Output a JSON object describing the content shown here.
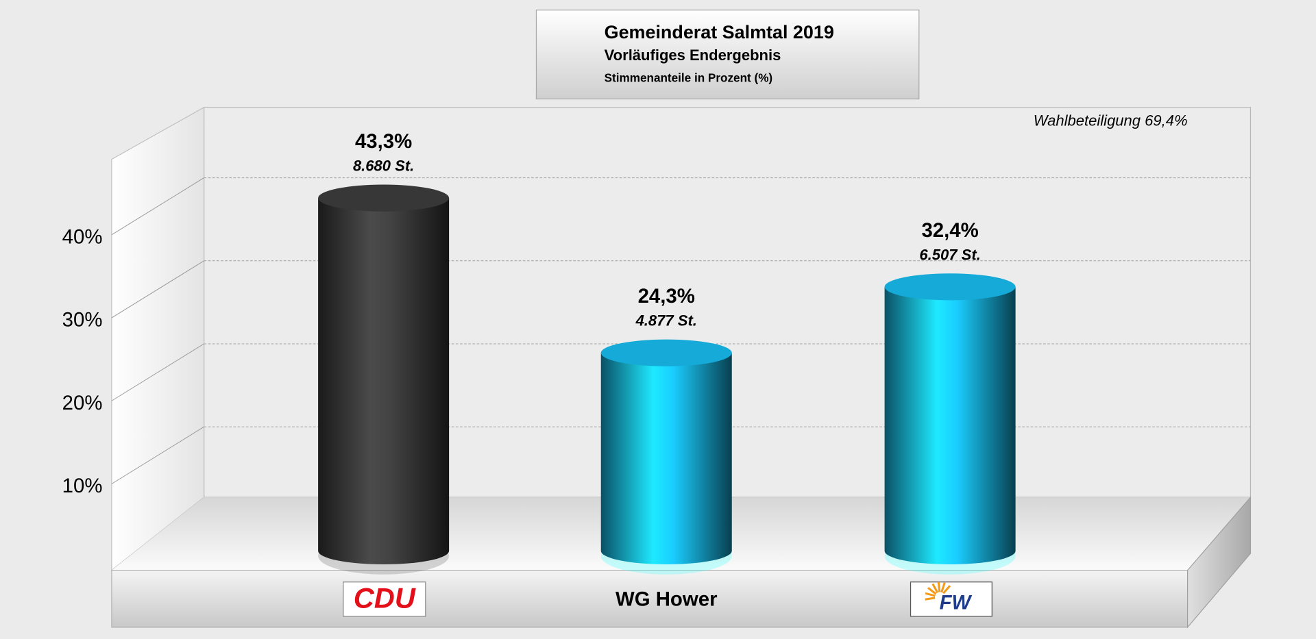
{
  "chart_data": {
    "type": "bar",
    "title": "Gemeinderat Salmtal 2019",
    "subtitle": "Vorläufiges Endergebnis",
    "axis_title": "Stimmenanteile in Prozent (%)",
    "annotation": "Wahlbeteiligung 69,4%",
    "categories": [
      "CDU",
      "WG Hower",
      "FW"
    ],
    "values": [
      43.3,
      24.3,
      32.4
    ],
    "value_labels": [
      "43,3%",
      "24,3%",
      "32,4%"
    ],
    "vote_labels": [
      "8.680 St.",
      "4.877 St.",
      "6.507 St."
    ],
    "colors": [
      "#3a3a3a",
      "#17b3e3",
      "#17b3e3"
    ],
    "ylim": [
      0,
      50
    ],
    "yticks": [
      {
        "value": 10,
        "label": "10%"
      },
      {
        "value": 20,
        "label": "20%"
      },
      {
        "value": 30,
        "label": "30%"
      },
      {
        "value": 40,
        "label": "40%"
      }
    ],
    "grid": true
  }
}
